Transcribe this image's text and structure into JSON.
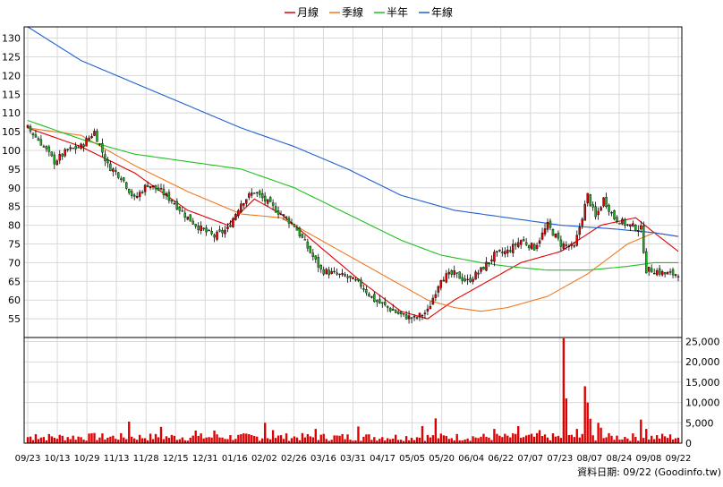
{
  "chart_data": {
    "type": "candlestick",
    "legend": {
      "placement": "top-center",
      "items": [
        {
          "label": "月線",
          "color": "#e00000"
        },
        {
          "label": "季線",
          "color": "#f07820"
        },
        {
          "label": "半年",
          "color": "#20c020"
        },
        {
          "label": "年線",
          "color": "#2060d0"
        }
      ]
    },
    "price_axis": {
      "ylim": [
        50,
        133
      ],
      "ticks": [
        55,
        60,
        65,
        70,
        75,
        80,
        85,
        90,
        95,
        100,
        105,
        110,
        115,
        120,
        125,
        130
      ],
      "side": "left"
    },
    "volume_axis": {
      "ylim": [
        0,
        26000
      ],
      "ticks": [
        0,
        5000,
        10000,
        15000,
        20000,
        25000
      ],
      "tick_labels": [
        "0",
        "5,000",
        "10,000",
        "15,000",
        "20,000",
        "25,000"
      ],
      "side": "right"
    },
    "x_tick_labels": [
      "09/23",
      "10/13",
      "10/29",
      "11/13",
      "11/28",
      "12/15",
      "12/31",
      "01/16",
      "02/02",
      "02/26",
      "03/16",
      "03/31",
      "04/17",
      "05/05",
      "05/20",
      "06/04",
      "06/22",
      "07/07",
      "07/23",
      "08/07",
      "08/24",
      "09/08",
      "09/22"
    ],
    "n_days": 245,
    "close_keypoints": [
      [
        0,
        106
      ],
      [
        5,
        102
      ],
      [
        10,
        97
      ],
      [
        15,
        100
      ],
      [
        20,
        101
      ],
      [
        25,
        105
      ],
      [
        30,
        96
      ],
      [
        35,
        93
      ],
      [
        40,
        87
      ],
      [
        45,
        91
      ],
      [
        50,
        89
      ],
      [
        55,
        86
      ],
      [
        60,
        82
      ],
      [
        65,
        79
      ],
      [
        70,
        77
      ],
      [
        75,
        79
      ],
      [
        80,
        86
      ],
      [
        85,
        89
      ],
      [
        90,
        86
      ],
      [
        95,
        83
      ],
      [
        100,
        80
      ],
      [
        105,
        74
      ],
      [
        110,
        68
      ],
      [
        115,
        67
      ],
      [
        120,
        66
      ],
      [
        125,
        64
      ],
      [
        130,
        60
      ],
      [
        135,
        58
      ],
      [
        140,
        56
      ],
      [
        145,
        55
      ],
      [
        150,
        57
      ],
      [
        155,
        66
      ],
      [
        160,
        67
      ],
      [
        165,
        65
      ],
      [
        170,
        68
      ],
      [
        175,
        72
      ],
      [
        180,
        73
      ],
      [
        185,
        76
      ],
      [
        190,
        74
      ],
      [
        195,
        80
      ],
      [
        200,
        75
      ],
      [
        205,
        74
      ],
      [
        210,
        88
      ],
      [
        213,
        82
      ],
      [
        216,
        87
      ],
      [
        220,
        82
      ],
      [
        225,
        80
      ],
      [
        230,
        79
      ],
      [
        232,
        68
      ],
      [
        235,
        68
      ],
      [
        239,
        67
      ],
      [
        244,
        67
      ]
    ],
    "ma_keypoints": {
      "月線": [
        [
          0,
          106
        ],
        [
          20,
          101
        ],
        [
          40,
          94
        ],
        [
          60,
          84
        ],
        [
          75,
          80
        ],
        [
          85,
          87
        ],
        [
          95,
          83
        ],
        [
          110,
          74
        ],
        [
          125,
          65
        ],
        [
          140,
          57
        ],
        [
          150,
          55
        ],
        [
          160,
          60
        ],
        [
          170,
          64
        ],
        [
          185,
          70
        ],
        [
          200,
          73
        ],
        [
          215,
          80
        ],
        [
          228,
          82
        ],
        [
          235,
          78
        ],
        [
          244,
          73
        ]
      ],
      "季線": [
        [
          0,
          106
        ],
        [
          20,
          104
        ],
        [
          40,
          96
        ],
        [
          60,
          89
        ],
        [
          80,
          83
        ],
        [
          95,
          82
        ],
        [
          110,
          76
        ],
        [
          130,
          68
        ],
        [
          150,
          60
        ],
        [
          160,
          58
        ],
        [
          170,
          57
        ],
        [
          180,
          58
        ],
        [
          195,
          61
        ],
        [
          210,
          67
        ],
        [
          225,
          75
        ],
        [
          235,
          78
        ],
        [
          244,
          77
        ]
      ],
      "半年": [
        [
          0,
          108
        ],
        [
          20,
          103
        ],
        [
          40,
          99
        ],
        [
          60,
          97
        ],
        [
          80,
          95
        ],
        [
          100,
          90
        ],
        [
          120,
          83
        ],
        [
          140,
          76
        ],
        [
          155,
          72
        ],
        [
          170,
          70
        ],
        [
          180,
          69
        ],
        [
          195,
          68
        ],
        [
          210,
          68
        ],
        [
          225,
          69
        ],
        [
          235,
          70
        ],
        [
          244,
          70
        ]
      ],
      "年線": [
        [
          0,
          133
        ],
        [
          20,
          124
        ],
        [
          40,
          118
        ],
        [
          60,
          112
        ],
        [
          80,
          106
        ],
        [
          100,
          101
        ],
        [
          120,
          95
        ],
        [
          140,
          88
        ],
        [
          160,
          84
        ],
        [
          180,
          82
        ],
        [
          200,
          80
        ],
        [
          220,
          79
        ],
        [
          235,
          78
        ],
        [
          244,
          77
        ]
      ]
    },
    "volume_baseline": 1500,
    "volume_spikes": [
      [
        3,
        2200
      ],
      [
        25,
        2500
      ],
      [
        38,
        5300
      ],
      [
        50,
        4000
      ],
      [
        63,
        3100
      ],
      [
        70,
        3100
      ],
      [
        89,
        5000
      ],
      [
        92,
        3200
      ],
      [
        108,
        3500
      ],
      [
        124,
        4100
      ],
      [
        148,
        4200
      ],
      [
        153,
        6100
      ],
      [
        175,
        3500
      ],
      [
        184,
        4200
      ],
      [
        192,
        3200
      ],
      [
        201,
        25800
      ],
      [
        202,
        11000
      ],
      [
        206,
        3500
      ],
      [
        209,
        14000
      ],
      [
        210,
        10000
      ],
      [
        211,
        6000
      ],
      [
        214,
        5000
      ],
      [
        215,
        3800
      ],
      [
        230,
        5800
      ],
      [
        232,
        3500
      ]
    ]
  },
  "footer": {
    "date_label": "資料日期: 09/22",
    "source": "(Goodinfo.tw)"
  }
}
